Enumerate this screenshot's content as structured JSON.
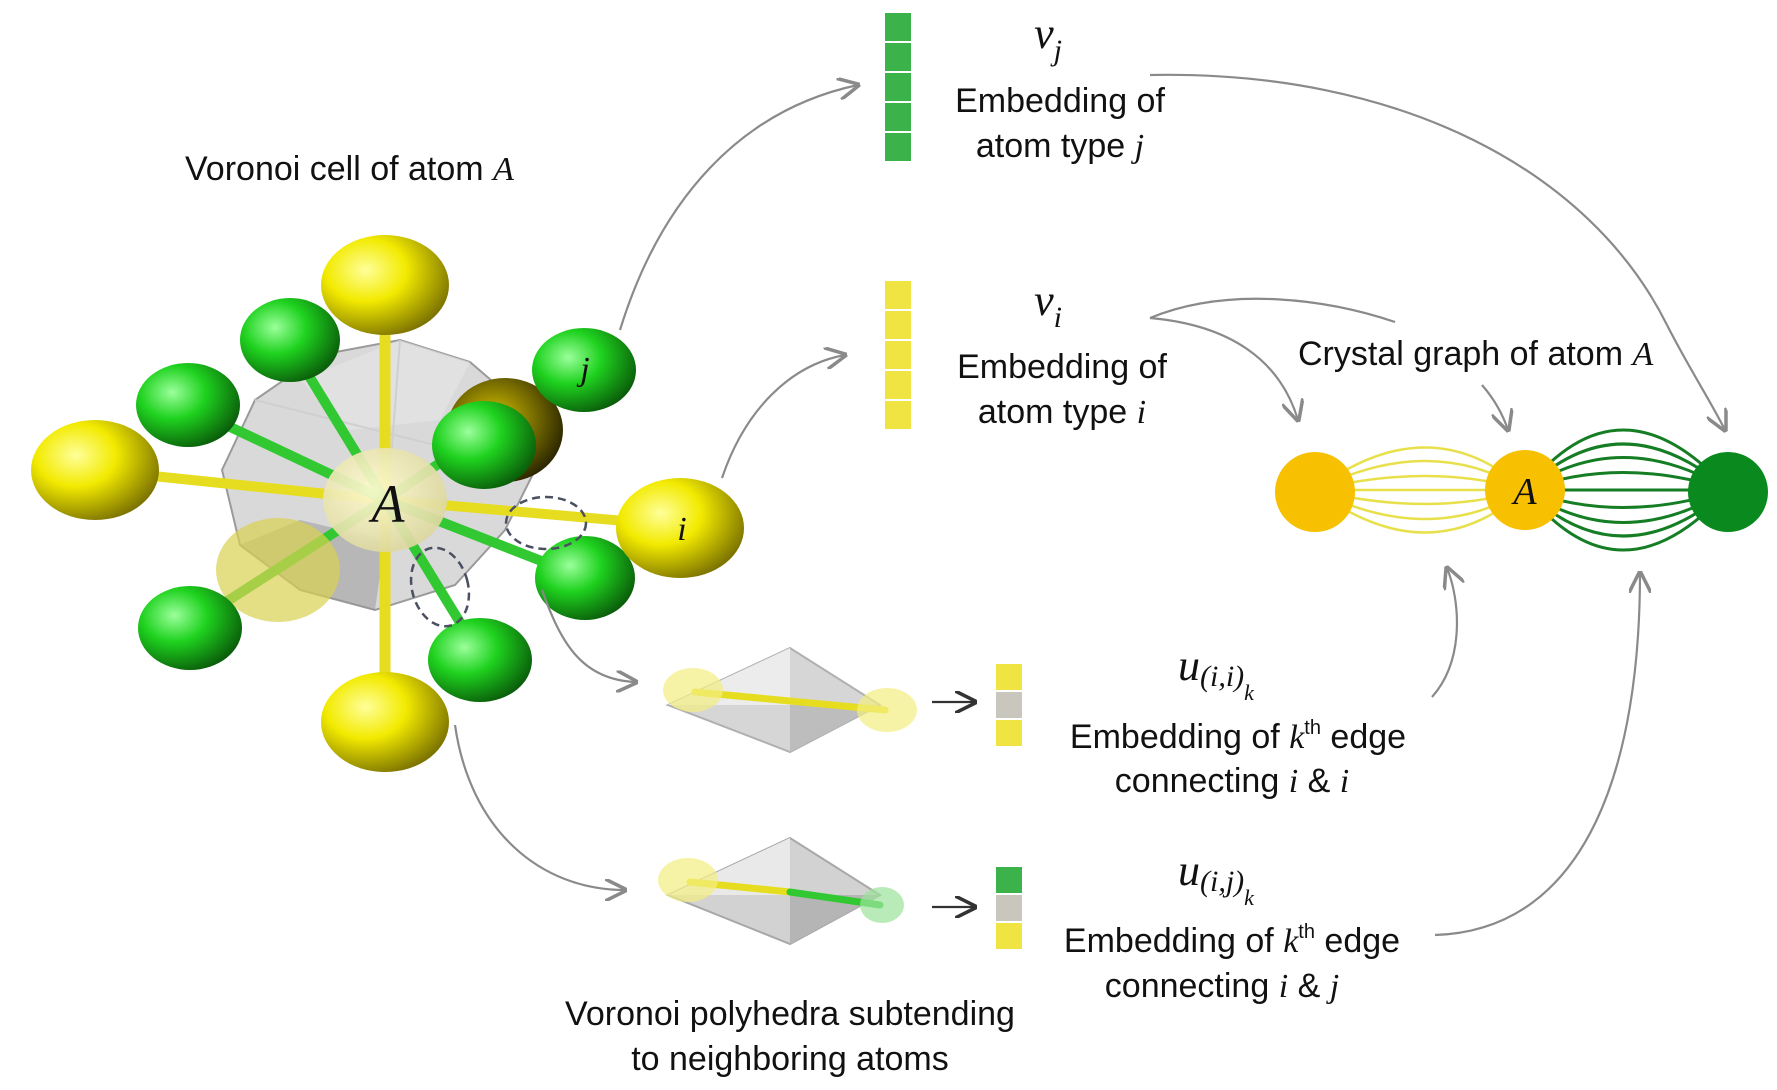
{
  "title": "Voronoi cell of atom A",
  "voronoi_cell": {
    "label_prefix": "Voronoi cell of atom ",
    "label_atom": "A",
    "center_atom": "A",
    "neighbor_j": "j",
    "neighbor_i": "i"
  },
  "embeddings": {
    "vj": {
      "symbol": "v",
      "sub": "j",
      "line1": "Embedding of",
      "line2_prefix": "atom type ",
      "line2_var": "j"
    },
    "vi": {
      "symbol": "v",
      "sub": "i",
      "line1": "Embedding of",
      "line2_prefix": "atom type ",
      "line2_var": "i"
    }
  },
  "edges": {
    "uii": {
      "symbol": "u",
      "sub_main": "(i,i)",
      "sub_k": "k",
      "line1_prefix": "Embedding of ",
      "line1_k": "k",
      "line1_sup": "th",
      "line1_suffix": " edge",
      "line2_prefix": "connecting ",
      "line2_a": "i",
      "line2_amp": " & ",
      "line2_b": "i"
    },
    "uij": {
      "symbol": "u",
      "sub_main": "(i,j)",
      "sub_k": "k",
      "line1_prefix": "Embedding of ",
      "line1_k": "k",
      "line1_sup": "th",
      "line1_suffix": " edge",
      "line2_prefix": "connecting ",
      "line2_a": "i",
      "line2_amp": " & ",
      "line2_b": "j"
    }
  },
  "crystal_graph": {
    "label_prefix": "Crystal graph of atom ",
    "label_atom": "A",
    "node_center": "A"
  },
  "polyhedra_caption": {
    "line1": "Voronoi polyhedra subtending",
    "line2": "to neighboring atoms"
  },
  "colors": {
    "yellow_atom": "#f2ea00",
    "green_atom": "#1fd21f",
    "vec_green": "#3cb34a",
    "vec_yellow": "#f0e442",
    "vec_gray": "#c8c6bd",
    "graph_yellow_node": "#f7c000",
    "graph_green_node": "#0a8a1e",
    "yellow_edges": "#e8e04a",
    "green_edges": "#157d24",
    "arrow": "#8a8a8a"
  }
}
